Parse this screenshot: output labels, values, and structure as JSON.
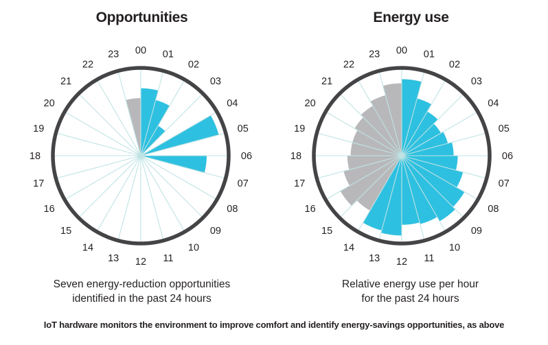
{
  "chart_data": [
    {
      "type": "polar-bar",
      "title": "Opportunities",
      "categories": [
        "00",
        "01",
        "02",
        "03",
        "04",
        "05",
        "06",
        "07",
        "08",
        "09",
        "10",
        "11",
        "12",
        "13",
        "14",
        "15",
        "16",
        "17",
        "18",
        "19",
        "20",
        "21",
        "22",
        "23"
      ],
      "values": [
        0.82,
        0.7,
        0.42,
        0.0,
        0.98,
        0.0,
        0.8,
        0,
        0,
        0,
        0,
        0,
        0,
        0,
        0,
        0,
        0,
        0,
        0,
        0,
        0,
        0,
        0,
        0.7
      ],
      "highlight": [
        "blue",
        "blue",
        "blue",
        "blue",
        "blue",
        "blue",
        "blue",
        "none",
        "none",
        "none",
        "none",
        "none",
        "none",
        "none",
        "none",
        "none",
        "none",
        "none",
        "none",
        "none",
        "none",
        "none",
        "none",
        "gray"
      ],
      "ylim": [
        0,
        1
      ],
      "caption": [
        "Seven energy-reduction opportunities",
        "identified in the past 24 hours"
      ]
    },
    {
      "type": "polar-bar",
      "title": "Energy use",
      "categories": [
        "00",
        "01",
        "02",
        "03",
        "04",
        "05",
        "06",
        "07",
        "08",
        "09",
        "10",
        "11",
        "12",
        "13",
        "14",
        "15",
        "16",
        "17",
        "18",
        "19",
        "20",
        "21",
        "22",
        "23"
      ],
      "values": [
        0.93,
        0.72,
        0.62,
        0.55,
        0.58,
        0.63,
        0.68,
        0.77,
        0.88,
        0.92,
        0.86,
        0.84,
        0.97,
        0.94,
        0.77,
        0.86,
        0.73,
        0.66,
        0.62,
        0.62,
        0.66,
        0.7,
        0.76,
        0.88
      ],
      "highlight": [
        "blue",
        "blue",
        "blue",
        "blue",
        "blue",
        "blue",
        "blue",
        "blue",
        "blue",
        "blue",
        "blue",
        "blue",
        "blue",
        "blue",
        "gray",
        "gray",
        "gray",
        "gray",
        "gray",
        "gray",
        "gray",
        "gray",
        "gray",
        "gray"
      ],
      "ylim": [
        0,
        1
      ],
      "caption": [
        "Relative energy use per hour",
        "for the past 24 hours"
      ]
    }
  ],
  "colors": {
    "blue": "#2ec0e0",
    "gray": "#b8b8ba",
    "ring": "#444447",
    "grid": "#bfe3e4"
  },
  "footer": "IoT hardware monitors the environment to improve comfort and identify energy-savings opportunities, as above"
}
